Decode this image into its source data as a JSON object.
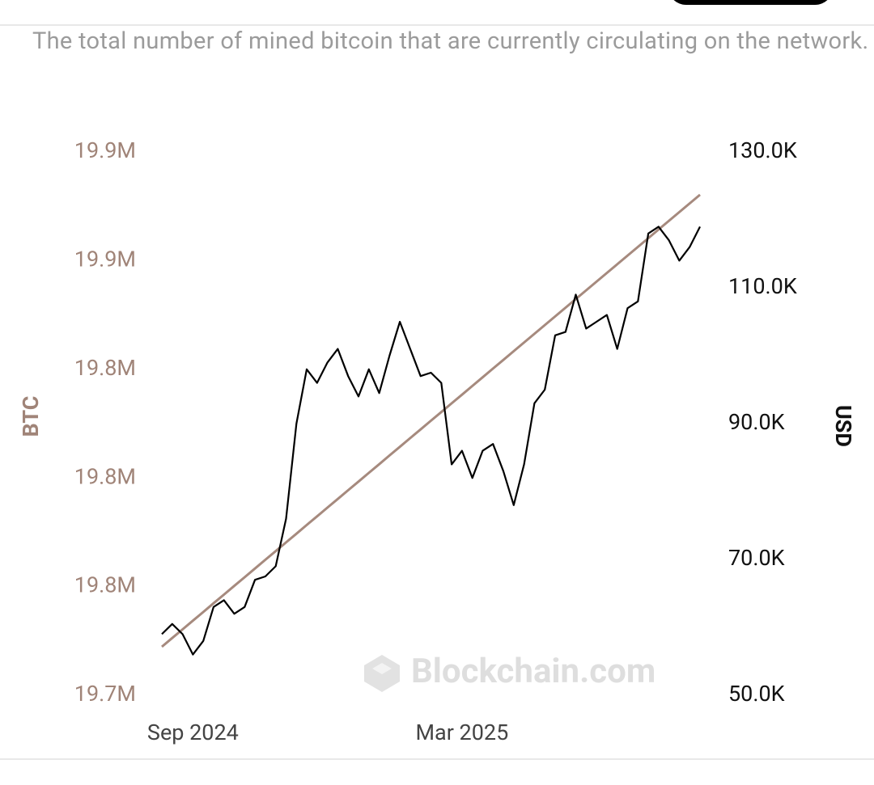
{
  "description": "The total number of mined bitcoin that are currently circulating on the network.",
  "watermark": "Blockchain.com",
  "chart_data": {
    "type": "line",
    "y_label": "BTC",
    "y2_label": "USD",
    "categories": [
      null,
      null,
      null,
      "Sep 2024",
      null,
      null,
      null,
      null,
      null,
      null,
      null,
      null,
      null,
      null,
      null,
      null,
      null,
      null,
      null,
      null,
      null,
      null,
      null,
      null,
      null,
      null,
      null,
      null,
      null,
      "Mar 2025",
      null,
      null,
      null,
      null,
      null,
      null,
      null,
      null,
      null,
      null,
      null,
      null,
      null,
      null,
      null,
      null,
      null,
      null,
      null,
      null,
      null,
      null,
      null
    ],
    "series": [
      {
        "name": "BTC",
        "color": "#a68a7e",
        "axis": "y",
        "values": [
          19753400,
          19755800,
          19758200,
          19760600,
          19763000,
          19765400,
          19767800,
          19770200,
          19772600,
          19775000,
          19777400,
          19779800,
          19782200,
          19784600,
          19787000,
          19789400,
          19791800,
          19794200,
          19796600,
          19799000,
          19801400,
          19803800,
          19806200,
          19808600,
          19811000,
          19813400,
          19815800,
          19818200,
          19820600,
          19823000,
          19825400,
          19827800,
          19830200,
          19832600,
          19835000,
          19837400,
          19839800,
          19842200,
          19844600,
          19847000,
          19849400,
          19851800,
          19854200,
          19856600,
          19859000,
          19861400,
          19863800,
          19866200,
          19868600,
          19871000,
          19873400,
          19875800,
          19878200
        ]
      },
      {
        "name": "USD",
        "color": "#000000",
        "axis": "y2",
        "values": [
          59000,
          60500,
          59000,
          56000,
          58000,
          63000,
          64000,
          62000,
          63000,
          67000,
          67500,
          69000,
          76000,
          90000,
          98000,
          96000,
          99000,
          101000,
          97000,
          94000,
          98000,
          94500,
          100000,
          105000,
          101000,
          97000,
          97500,
          96000,
          84000,
          86000,
          82000,
          86000,
          87000,
          83000,
          78000,
          84000,
          93000,
          95000,
          103000,
          103500,
          109000,
          104000,
          105000,
          106000,
          101000,
          107000,
          108000,
          118000,
          119000,
          117000,
          114000,
          116000,
          119000
        ]
      }
    ],
    "ylim": [
      19740000,
      19890000
    ],
    "yticks": [
      {
        "value": 19740000,
        "label": "19.7M"
      },
      {
        "value": 19770000,
        "label": "19.8M"
      },
      {
        "value": 19800000,
        "label": "19.8M"
      },
      {
        "value": 19830000,
        "label": "19.8M"
      },
      {
        "value": 19860000,
        "label": "19.9M"
      },
      {
        "value": 19890000,
        "label": "19.9M"
      }
    ],
    "y2lim": [
      50000,
      130000
    ],
    "y2ticks": [
      {
        "value": 50000,
        "label": "50.0K"
      },
      {
        "value": 70000,
        "label": "70.0K"
      },
      {
        "value": 90000,
        "label": "90.0K"
      },
      {
        "value": 110000,
        "label": "110.0K"
      },
      {
        "value": 130000,
        "label": "130.0K"
      }
    ],
    "grid": false
  }
}
